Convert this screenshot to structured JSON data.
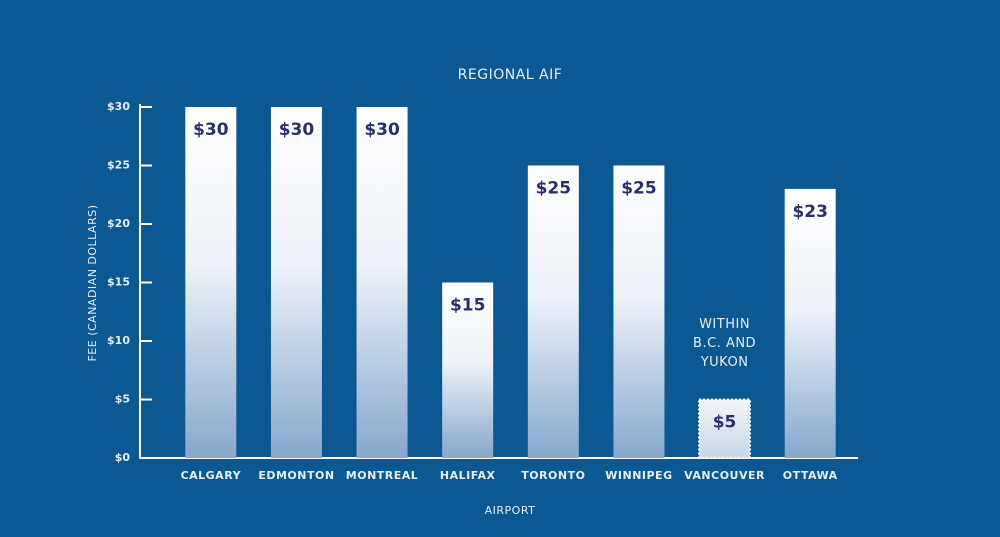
{
  "chart_data": {
    "type": "bar",
    "title": "REGIONAL AIF",
    "x_label": "AIRPORT",
    "y_label": "FEE (CANADIAN DOLLARS)",
    "categories": [
      "CALGARY",
      "EDMONTON",
      "MONTREAL",
      "HALIFAX",
      "TORONTO",
      "WINNIPEG",
      "VANCOUVER",
      "OTTAWA"
    ],
    "values": [
      30,
      30,
      30,
      15,
      25,
      25,
      5,
      23
    ],
    "value_labels": [
      "$30",
      "$30",
      "$30",
      "$15",
      "$25",
      "$25",
      "$5",
      "$23"
    ],
    "dashed": [
      false,
      false,
      false,
      false,
      false,
      false,
      true,
      false
    ],
    "annotation": [
      "WITHIN",
      "B.C. AND",
      "YUKON"
    ],
    "ylim": [
      0,
      30
    ],
    "yticks": [
      {
        "value": 0,
        "label": "$0"
      },
      {
        "value": 5,
        "label": "$5"
      },
      {
        "value": 10,
        "label": "$10"
      },
      {
        "value": 15,
        "label": "$15"
      },
      {
        "value": 20,
        "label": "$20"
      },
      {
        "value": 25,
        "label": "$25"
      },
      {
        "value": 30,
        "label": "$30"
      }
    ],
    "grid": false
  }
}
